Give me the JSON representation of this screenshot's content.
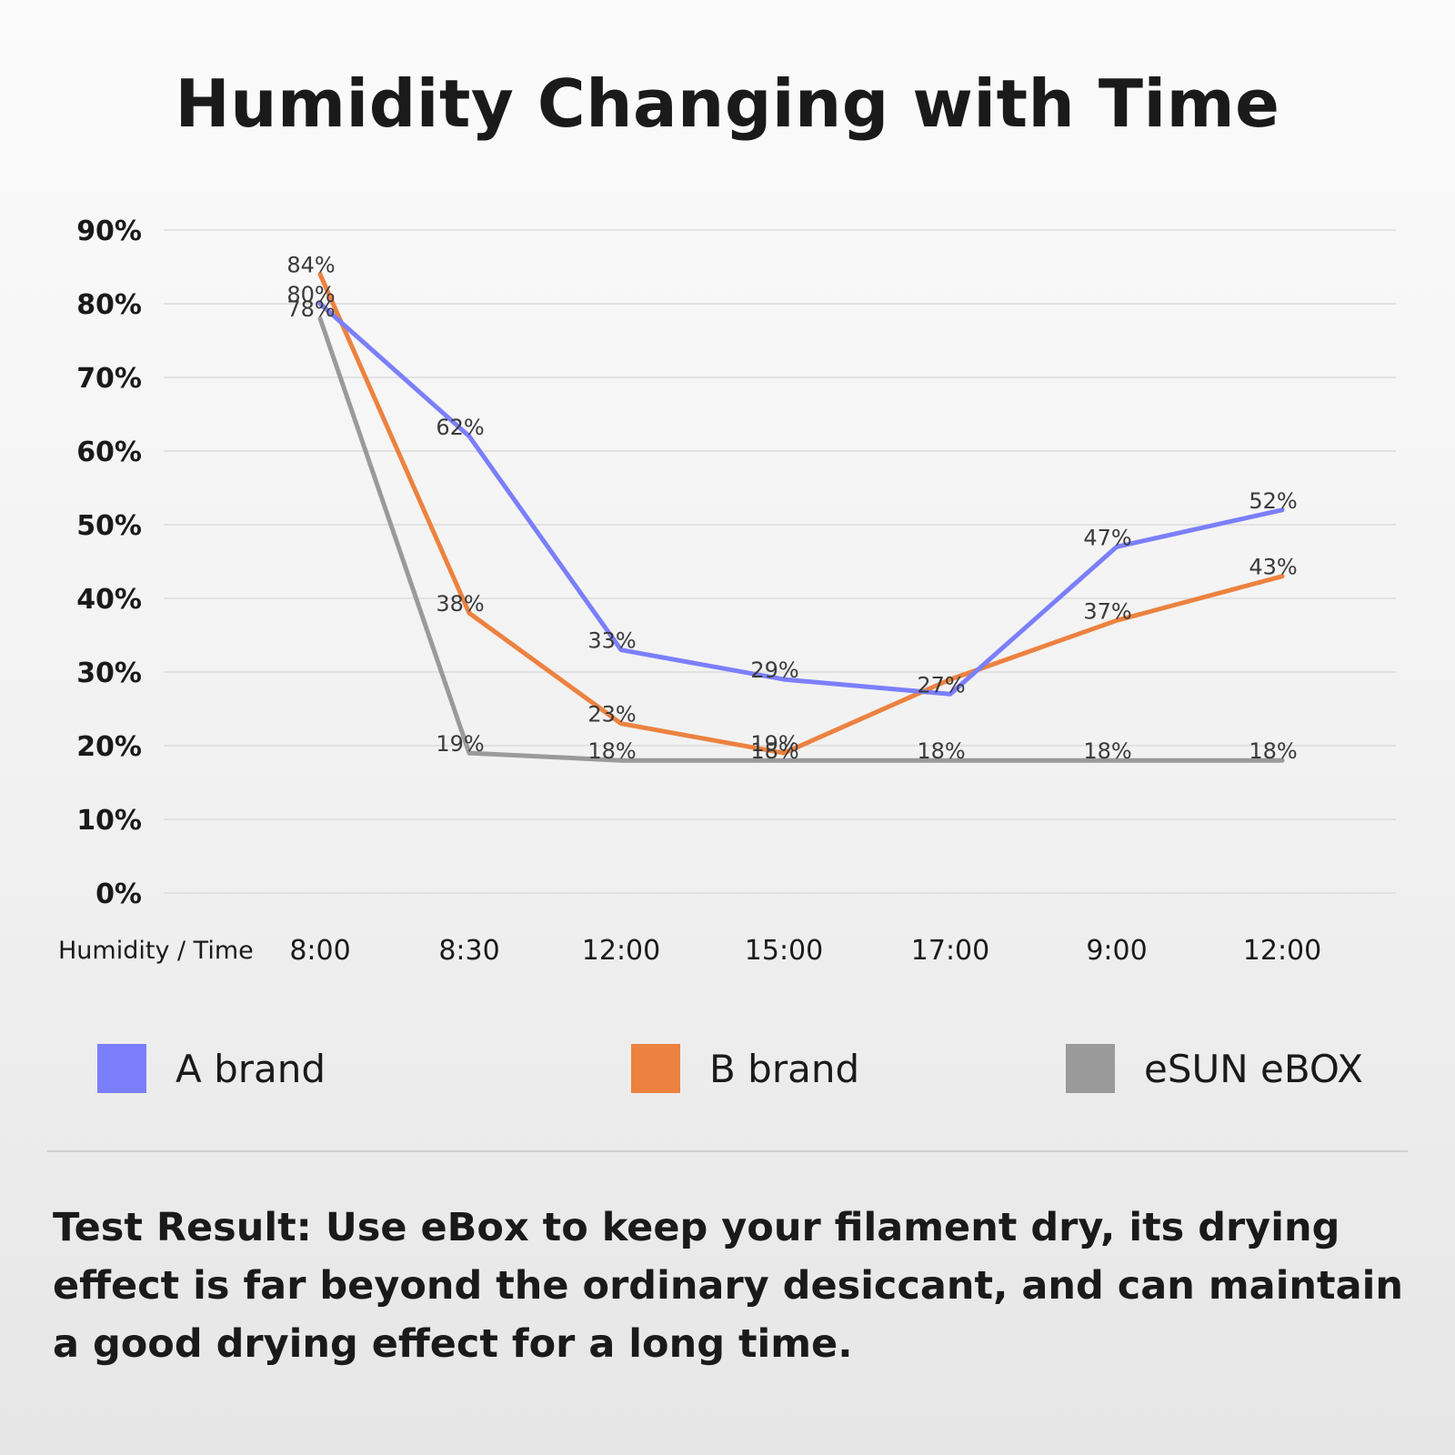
{
  "chart_data": {
    "type": "line",
    "title": "Humidity Changing with Time",
    "xlabel": "Humidity / Time",
    "ylabel": "",
    "categories": [
      "8:00",
      "8:30",
      "12:00",
      "15:00",
      "17:00",
      "9:00",
      "12:00"
    ],
    "yticks": [
      "0%",
      "10%",
      "20%",
      "30%",
      "40%",
      "50%",
      "60%",
      "70%",
      "80%",
      "90%"
    ],
    "ylim": [
      0,
      90
    ],
    "grid": true,
    "legend_position": "bottom",
    "series": [
      {
        "name": "A brand",
        "color": "#7b7ffc",
        "values": [
          80,
          62,
          33,
          29,
          27,
          47,
          52
        ],
        "labels": [
          "80%",
          "62%",
          "33%",
          "29%",
          "27%",
          "47%",
          "52%"
        ]
      },
      {
        "name": "B brand",
        "color": "#ec8240",
        "values": [
          84,
          38,
          23,
          19,
          29,
          37,
          43
        ],
        "labels": [
          "84%",
          "38%",
          "23%",
          "19%",
          "",
          "37%",
          "43%"
        ]
      },
      {
        "name": "eSUN eBOX",
        "color": "#9a9a9a",
        "values": [
          78,
          19,
          18,
          18,
          18,
          18,
          18
        ],
        "labels": [
          "78%",
          "19%",
          "18%",
          "18%",
          "18%",
          "18%",
          "18%"
        ]
      }
    ]
  },
  "footer": {
    "test_result": "Test Result: Use eBox to keep your filament dry, its drying effect is far beyond the ordinary desiccant, and can maintain a good drying effect for a long time."
  }
}
